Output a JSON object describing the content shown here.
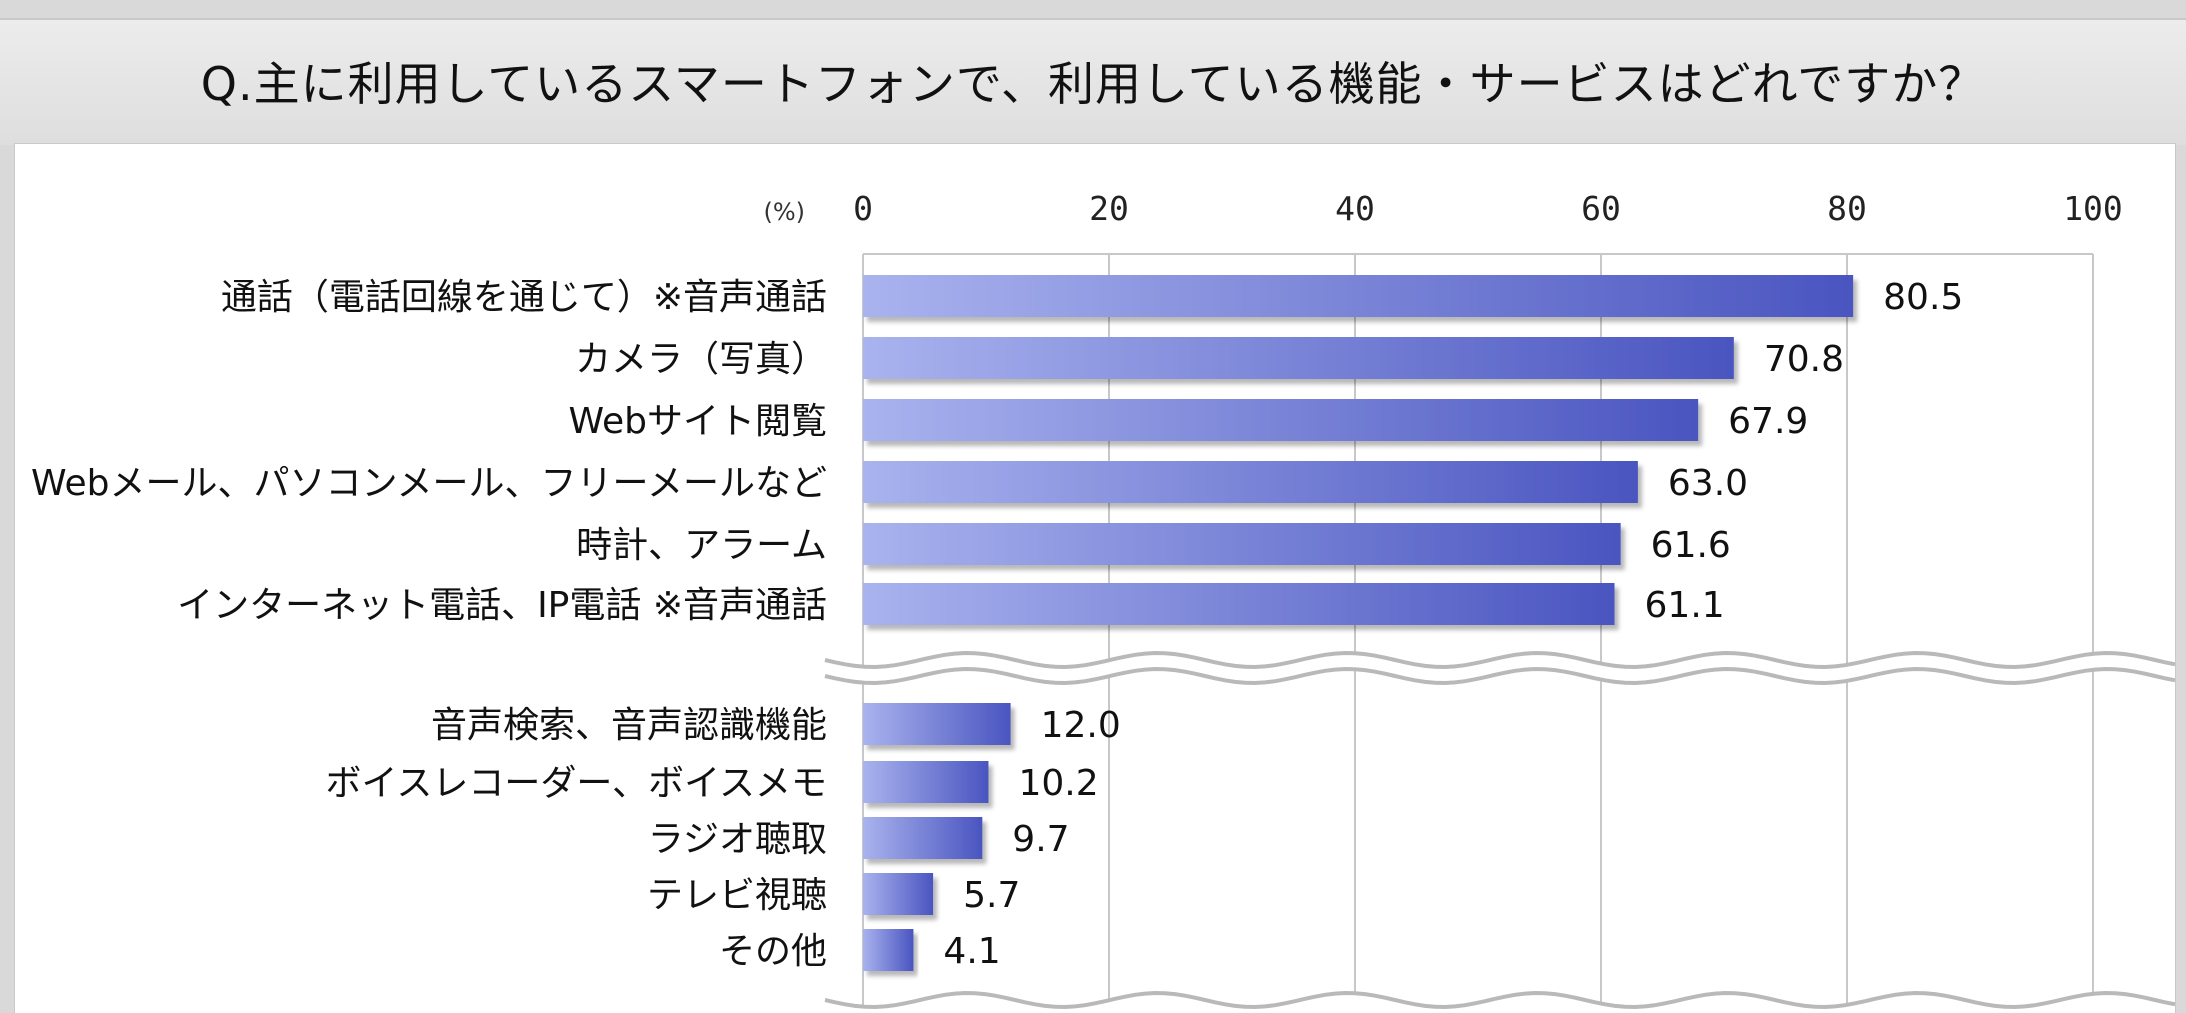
{
  "title": "Q.主に利用しているスマートフォンで、利用している機能・サービスはどれですか？",
  "colors": {
    "bar_light": "#a9b3ee",
    "bar_dark": "#4a55c0",
    "grid": "#c8c8c8",
    "background": "#d9d9d9"
  },
  "chart_data": {
    "type": "bar",
    "orientation": "horizontal",
    "unit_label": "(%)",
    "xlim": [
      0,
      100
    ],
    "ticks": [
      0,
      20,
      40,
      60,
      80,
      100
    ],
    "grid": true,
    "axis_break": "between 6th and 7th category",
    "categories": [
      "通話（電話回線を通じて）※音声通話",
      "カメラ（写真）",
      "Webサイト閲覧",
      "Webメール、パソコンメール、フリーメールなど",
      "時計、アラーム",
      "インターネット電話、IP電話 ※音声通話",
      "音声検索、音声認識機能",
      "ボイスレコーダー、ボイスメモ",
      "ラジオ聴取",
      "テレビ視聴",
      "その他"
    ],
    "values": [
      80.5,
      70.8,
      67.9,
      63.0,
      61.6,
      61.1,
      12.0,
      10.2,
      9.7,
      5.7,
      4.1
    ],
    "value_labels": [
      "80.5",
      "70.8",
      "67.9",
      "63.0",
      "61.6",
      "61.1",
      "12.0",
      "10.2",
      "9.7",
      "5.7",
      "4.1"
    ]
  }
}
